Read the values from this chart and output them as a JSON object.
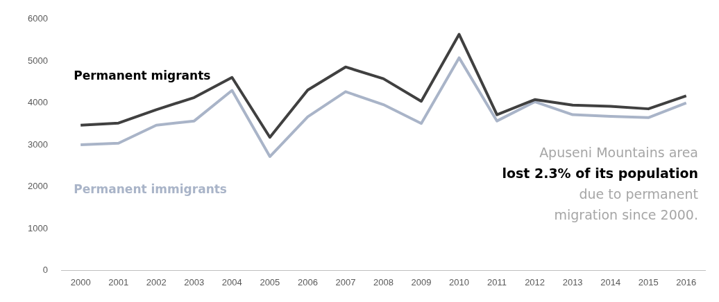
{
  "chart_data": {
    "type": "line",
    "categories": [
      "2000",
      "2001",
      "2002",
      "2003",
      "2004",
      "2005",
      "2006",
      "2007",
      "2008",
      "2009",
      "2010",
      "2011",
      "2012",
      "2013",
      "2014",
      "2015",
      "2016"
    ],
    "series": [
      {
        "name": "Permanent migrants",
        "color": "#404040",
        "values": [
          3470,
          3520,
          3840,
          4130,
          4610,
          3180,
          4310,
          4860,
          4580,
          4040,
          5640,
          3720,
          4080,
          3950,
          3920,
          3860,
          4170
        ]
      },
      {
        "name": "Permanent immigrants",
        "color": "#a9b4c8",
        "values": [
          3000,
          3040,
          3470,
          3570,
          4300,
          2720,
          3670,
          4270,
          3960,
          3510,
          5080,
          3570,
          4030,
          3720,
          3680,
          3650,
          4000
        ]
      }
    ],
    "ylim": [
      0,
      6000
    ],
    "yticks": [
      0,
      1000,
      2000,
      3000,
      4000,
      5000,
      6000
    ],
    "grid": false,
    "legend": false,
    "marker": "none",
    "line_style": "solid",
    "annotations": [
      "Apuseni Mountains area",
      "lost 2.3% of its population",
      "due to permanent",
      "migration since 2000."
    ]
  }
}
